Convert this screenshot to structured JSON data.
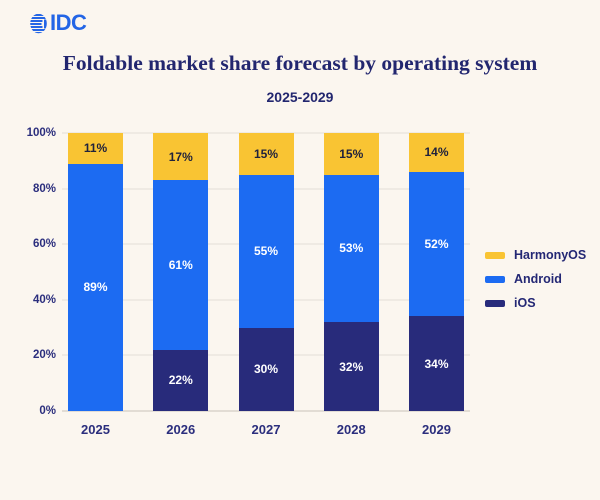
{
  "header": {
    "logo_text": "IDC",
    "title": "Foldable market share forecast by operating system",
    "subtitle": "2025-2029"
  },
  "colors": {
    "background": "#FBF6EF",
    "text_navy": "#22266F",
    "logo_blue": "#2365E6",
    "gridline": "#EFEAE3"
  },
  "chart_data": {
    "type": "bar",
    "stacked": true,
    "title": "Foldable market share forecast by operating system",
    "subtitle": "2025-2029",
    "categories": [
      "2025",
      "2026",
      "2027",
      "2028",
      "2029"
    ],
    "series": [
      {
        "name": "iOS",
        "color": "#282B7B",
        "label_color": "#FFFFFF",
        "values": [
          0,
          22,
          30,
          32,
          34
        ]
      },
      {
        "name": "Android",
        "color": "#1C6BF2",
        "label_color": "#FFFFFF",
        "values": [
          89,
          61,
          55,
          53,
          52
        ]
      },
      {
        "name": "HarmonyOS",
        "color": "#F9C433",
        "label_color": "#20223C",
        "values": [
          11,
          17,
          15,
          15,
          14
        ]
      }
    ],
    "value_suffix": "%",
    "y_ticks": [
      "100%",
      "80%",
      "60%",
      "40%",
      "20%",
      "0%"
    ],
    "ylim": [
      0,
      100
    ],
    "grid": true,
    "legend_position": "right",
    "legend_order": [
      "HarmonyOS",
      "Android",
      "iOS"
    ]
  }
}
